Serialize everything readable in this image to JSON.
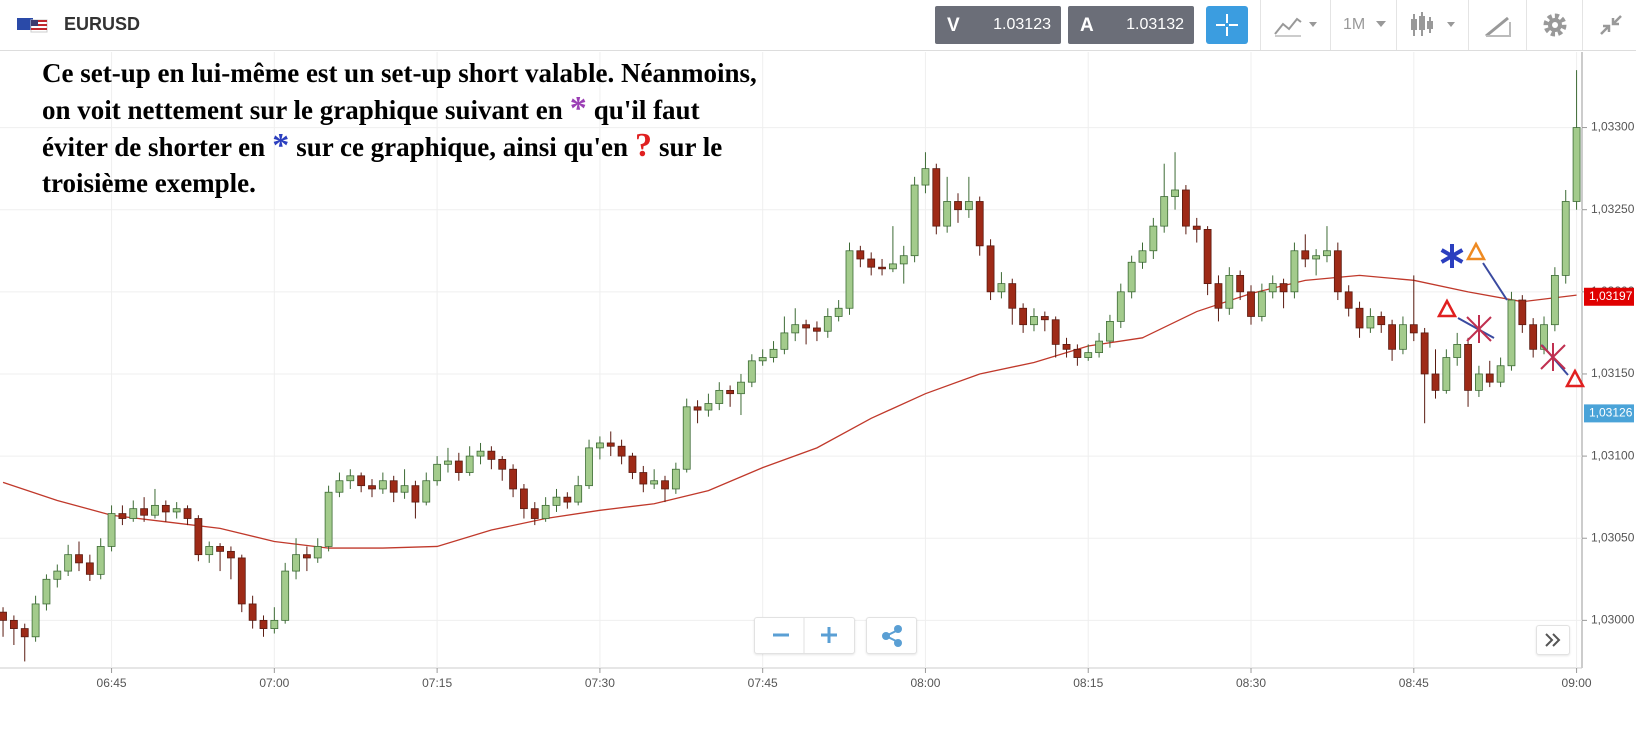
{
  "toolbar": {
    "symbol": "EURUSD",
    "bid_label": "V",
    "bid": "1.03123",
    "ask_label": "A",
    "ask": "1.03132",
    "timeframe": "1M"
  },
  "annotation": {
    "lines": [
      [
        "Ce set-up en lui-même est un set-up short valable. Néanmoins,"
      ],
      [
        "on voit nettement sur le graphique suivant en",
        {
          "text": "*",
          "color": "#9b3fb5"
        },
        "qu'il faut"
      ],
      [
        "éviter de shorter en",
        {
          "text": "*",
          "color": "#2b3fbf"
        },
        "sur ce graphique, ainsi qu'en",
        {
          "text": "?",
          "color": "#e02020"
        },
        "sur le"
      ],
      [
        "troisième exemple."
      ]
    ]
  },
  "chart_data": {
    "type": "candlestick",
    "up_color": "#a3cb8c",
    "up_border": "#3d6b35",
    "down_color": "#9e2a17",
    "down_border": "#5a1a10",
    "grid": true,
    "xlim": [
      -0.28,
      145.5
    ],
    "xticks": [
      {
        "value": 10,
        "label": "06:45"
      },
      {
        "value": 25,
        "label": "07:00"
      },
      {
        "value": 40,
        "label": "07:15"
      },
      {
        "value": 55,
        "label": "07:30"
      },
      {
        "value": 70,
        "label": "07:45"
      },
      {
        "value": 85,
        "label": "08:00"
      },
      {
        "value": 100,
        "label": "08:15"
      },
      {
        "value": 115,
        "label": "08:30"
      },
      {
        "value": 130,
        "label": "08:45"
      },
      {
        "value": 145,
        "label": "09:00"
      }
    ],
    "ylim": [
      1.02971,
      1.03346
    ],
    "yticks": [
      {
        "value": 1.03,
        "label": "1,03000"
      },
      {
        "value": 1.0305,
        "label": "1,03050"
      },
      {
        "value": 1.031,
        "label": "1,03100"
      },
      {
        "value": 1.0315,
        "label": "1,03150"
      },
      {
        "value": 1.032,
        "label": "1,03200"
      },
      {
        "value": 1.0325,
        "label": "1,03250"
      },
      {
        "value": 1.033,
        "label": "1,03300"
      }
    ],
    "price_tags": [
      {
        "value": 1.03197,
        "label": "1,03197",
        "color": "#e00000"
      },
      {
        "value": 1.03126,
        "label": "1,03126",
        "color": "#4aa3d8"
      }
    ],
    "ma": {
      "color": "#c0392b",
      "x": [
        0,
        5,
        10,
        15,
        20,
        25,
        30,
        35,
        40,
        45,
        50,
        55,
        60,
        65,
        70,
        75,
        80,
        85,
        90,
        95,
        100,
        105,
        110,
        115,
        120,
        125,
        130,
        135,
        140,
        145
      ],
      "values": [
        1.03084,
        1.03073,
        1.03064,
        1.0306,
        1.03056,
        1.03048,
        1.03044,
        1.03044,
        1.03045,
        1.03055,
        1.03062,
        1.03067,
        1.03071,
        1.03079,
        1.03093,
        1.03105,
        1.03123,
        1.03138,
        1.0315,
        1.03157,
        1.03167,
        1.03172,
        1.03188,
        1.03199,
        1.03207,
        1.0321,
        1.03207,
        1.032,
        1.03194,
        1.03198
      ]
    },
    "ohlc": [
      [
        1.03005,
        1.03008,
        1.0299,
        1.03
      ],
      [
        1.03,
        1.03003,
        1.02985,
        1.02995
      ],
      [
        1.02995,
        1.02998,
        1.02975,
        1.0299
      ],
      [
        1.0299,
        1.03015,
        1.02987,
        1.0301
      ],
      [
        1.0301,
        1.03028,
        1.03006,
        1.03025
      ],
      [
        1.03025,
        1.03034,
        1.0302,
        1.0303
      ],
      [
        1.0303,
        1.03046,
        1.03027,
        1.0304
      ],
      [
        1.0304,
        1.03048,
        1.0303,
        1.03035
      ],
      [
        1.03035,
        1.0304,
        1.03024,
        1.03028
      ],
      [
        1.03028,
        1.0305,
        1.03025,
        1.03045
      ],
      [
        1.03045,
        1.0307,
        1.03042,
        1.03065
      ],
      [
        1.03065,
        1.0307,
        1.03058,
        1.03062
      ],
      [
        1.03062,
        1.03073,
        1.0306,
        1.03068
      ],
      [
        1.03068,
        1.03075,
        1.0306,
        1.03064
      ],
      [
        1.03064,
        1.0308,
        1.03062,
        1.0307
      ],
      [
        1.0307,
        1.03073,
        1.0306,
        1.03066
      ],
      [
        1.03066,
        1.03072,
        1.03062,
        1.03068
      ],
      [
        1.03068,
        1.0307,
        1.03058,
        1.03062
      ],
      [
        1.03062,
        1.03064,
        1.03036,
        1.0304
      ],
      [
        1.0304,
        1.03048,
        1.03035,
        1.03045
      ],
      [
        1.03045,
        1.03047,
        1.0303,
        1.03042
      ],
      [
        1.03042,
        1.03045,
        1.03025,
        1.03038
      ],
      [
        1.03038,
        1.0304,
        1.03005,
        1.0301
      ],
      [
        1.0301,
        1.03015,
        1.02995,
        1.03
      ],
      [
        1.03,
        1.03003,
        1.0299,
        1.02995
      ],
      [
        1.02995,
        1.03008,
        1.02992,
        1.03
      ],
      [
        1.03,
        1.03035,
        1.02998,
        1.0303
      ],
      [
        1.0303,
        1.0305,
        1.03025,
        1.0304
      ],
      [
        1.0304,
        1.03045,
        1.0303,
        1.03038
      ],
      [
        1.03038,
        1.0305,
        1.03035,
        1.03045
      ],
      [
        1.03045,
        1.03082,
        1.03042,
        1.03078
      ],
      [
        1.03078,
        1.0309,
        1.03075,
        1.03085
      ],
      [
        1.03085,
        1.03092,
        1.0308,
        1.03088
      ],
      [
        1.03088,
        1.0309,
        1.03078,
        1.03082
      ],
      [
        1.03082,
        1.03086,
        1.03075,
        1.0308
      ],
      [
        1.0308,
        1.0309,
        1.03077,
        1.03085
      ],
      [
        1.03085,
        1.03088,
        1.03072,
        1.03078
      ],
      [
        1.03078,
        1.03092,
        1.03074,
        1.03082
      ],
      [
        1.03082,
        1.03085,
        1.03062,
        1.03072
      ],
      [
        1.03072,
        1.0309,
        1.0307,
        1.03085
      ],
      [
        1.03085,
        1.031,
        1.03082,
        1.03095
      ],
      [
        1.03095,
        1.03105,
        1.0309,
        1.03097
      ],
      [
        1.03097,
        1.03102,
        1.03085,
        1.0309
      ],
      [
        1.0309,
        1.03106,
        1.03088,
        1.031
      ],
      [
        1.031,
        1.03108,
        1.03095,
        1.03103
      ],
      [
        1.03103,
        1.03106,
        1.03092,
        1.03098
      ],
      [
        1.03098,
        1.031,
        1.03085,
        1.03092
      ],
      [
        1.03092,
        1.03095,
        1.03075,
        1.0308
      ],
      [
        1.0308,
        1.03083,
        1.03062,
        1.03068
      ],
      [
        1.03068,
        1.03072,
        1.03058,
        1.03062
      ],
      [
        1.03062,
        1.03075,
        1.0306,
        1.0307
      ],
      [
        1.0307,
        1.0308,
        1.03066,
        1.03075
      ],
      [
        1.03075,
        1.03078,
        1.03068,
        1.03072
      ],
      [
        1.03072,
        1.03088,
        1.0307,
        1.03082
      ],
      [
        1.03082,
        1.0311,
        1.0308,
        1.03105
      ],
      [
        1.03105,
        1.03112,
        1.03098,
        1.03108
      ],
      [
        1.03108,
        1.03115,
        1.031,
        1.03106
      ],
      [
        1.03106,
        1.0311,
        1.03095,
        1.031
      ],
      [
        1.031,
        1.03102,
        1.03086,
        1.0309
      ],
      [
        1.0309,
        1.03094,
        1.03078,
        1.03083
      ],
      [
        1.03083,
        1.03092,
        1.0308,
        1.03085
      ],
      [
        1.03085,
        1.03088,
        1.03072,
        1.0308
      ],
      [
        1.0308,
        1.03096,
        1.03077,
        1.03092
      ],
      [
        1.03092,
        1.03135,
        1.0309,
        1.0313
      ],
      [
        1.0313,
        1.03134,
        1.0312,
        1.03128
      ],
      [
        1.03128,
        1.03138,
        1.03124,
        1.03132
      ],
      [
        1.03132,
        1.03145,
        1.03128,
        1.0314
      ],
      [
        1.0314,
        1.03143,
        1.0313,
        1.03138
      ],
      [
        1.03138,
        1.0315,
        1.03125,
        1.03145
      ],
      [
        1.03145,
        1.03162,
        1.03142,
        1.03158
      ],
      [
        1.03158,
        1.03165,
        1.03155,
        1.0316
      ],
      [
        1.0316,
        1.0317,
        1.03157,
        1.03165
      ],
      [
        1.03165,
        1.03185,
        1.03162,
        1.03175
      ],
      [
        1.03175,
        1.0319,
        1.0317,
        1.0318
      ],
      [
        1.0318,
        1.03183,
        1.03168,
        1.03178
      ],
      [
        1.03178,
        1.03182,
        1.0317,
        1.03176
      ],
      [
        1.03176,
        1.0319,
        1.03172,
        1.03185
      ],
      [
        1.03185,
        1.03195,
        1.03182,
        1.0319
      ],
      [
        1.0319,
        1.0323,
        1.03186,
        1.03225
      ],
      [
        1.03225,
        1.03228,
        1.03215,
        1.0322
      ],
      [
        1.0322,
        1.03224,
        1.0321,
        1.03215
      ],
      [
        1.03215,
        1.0322,
        1.0321,
        1.03214
      ],
      [
        1.03214,
        1.0324,
        1.03212,
        1.03217
      ],
      [
        1.03217,
        1.03228,
        1.03205,
        1.03222
      ],
      [
        1.03222,
        1.0327,
        1.03218,
        1.03265
      ],
      [
        1.03265,
        1.03285,
        1.0326,
        1.03275
      ],
      [
        1.03275,
        1.03278,
        1.03235,
        1.0324
      ],
      [
        1.0324,
        1.0327,
        1.03236,
        1.03255
      ],
      [
        1.03255,
        1.0326,
        1.03242,
        1.0325
      ],
      [
        1.0325,
        1.0327,
        1.03245,
        1.03255
      ],
      [
        1.03255,
        1.03258,
        1.03222,
        1.03228
      ],
      [
        1.03228,
        1.03232,
        1.03195,
        1.032
      ],
      [
        1.032,
        1.03212,
        1.03196,
        1.03205
      ],
      [
        1.03205,
        1.03208,
        1.0318,
        1.0319
      ],
      [
        1.0319,
        1.03193,
        1.03175,
        1.0318
      ],
      [
        1.0318,
        1.0319,
        1.03176,
        1.03185
      ],
      [
        1.03185,
        1.03188,
        1.03176,
        1.03183
      ],
      [
        1.03183,
        1.03185,
        1.0316,
        1.03168
      ],
      [
        1.03168,
        1.03172,
        1.0316,
        1.03165
      ],
      [
        1.03165,
        1.03168,
        1.03155,
        1.0316
      ],
      [
        1.0316,
        1.03168,
        1.03158,
        1.03163
      ],
      [
        1.03163,
        1.03175,
        1.0316,
        1.0317
      ],
      [
        1.0317,
        1.03186,
        1.03166,
        1.03182
      ],
      [
        1.03182,
        1.03205,
        1.03178,
        1.032
      ],
      [
        1.032,
        1.03222,
        1.03196,
        1.03218
      ],
      [
        1.03218,
        1.0323,
        1.03214,
        1.03225
      ],
      [
        1.03225,
        1.03245,
        1.0322,
        1.0324
      ],
      [
        1.0324,
        1.03278,
        1.03236,
        1.03258
      ],
      [
        1.03258,
        1.03285,
        1.0325,
        1.03262
      ],
      [
        1.03262,
        1.03265,
        1.03235,
        1.0324
      ],
      [
        1.0324,
        1.03245,
        1.0323,
        1.03238
      ],
      [
        1.03238,
        1.0324,
        1.03198,
        1.03205
      ],
      [
        1.03205,
        1.0321,
        1.03182,
        1.0319
      ],
      [
        1.0319,
        1.03215,
        1.03186,
        1.0321
      ],
      [
        1.0321,
        1.03213,
        1.03195,
        1.032
      ],
      [
        1.032,
        1.03204,
        1.0318,
        1.03185
      ],
      [
        1.03185,
        1.03205,
        1.03182,
        1.032
      ],
      [
        1.032,
        1.0321,
        1.03196,
        1.03205
      ],
      [
        1.03205,
        1.03208,
        1.0319,
        1.032
      ],
      [
        1.032,
        1.0323,
        1.03196,
        1.03225
      ],
      [
        1.03225,
        1.03235,
        1.03215,
        1.0322
      ],
      [
        1.0322,
        1.03226,
        1.0321,
        1.03222
      ],
      [
        1.03222,
        1.0324,
        1.03218,
        1.03225
      ],
      [
        1.03225,
        1.0323,
        1.03195,
        1.032
      ],
      [
        1.032,
        1.03204,
        1.03185,
        1.0319
      ],
      [
        1.0319,
        1.03194,
        1.03172,
        1.03178
      ],
      [
        1.03178,
        1.0319,
        1.03175,
        1.03185
      ],
      [
        1.03185,
        1.03188,
        1.03175,
        1.0318
      ],
      [
        1.0318,
        1.03183,
        1.03158,
        1.03165
      ],
      [
        1.03165,
        1.03185,
        1.03162,
        1.0318
      ],
      [
        1.0318,
        1.0321,
        1.0317,
        1.03175
      ],
      [
        1.03175,
        1.03178,
        1.0312,
        1.0315
      ],
      [
        1.0315,
        1.03165,
        1.03135,
        1.0314
      ],
      [
        1.0314,
        1.03165,
        1.03138,
        1.0316
      ],
      [
        1.0316,
        1.03175,
        1.03155,
        1.03168
      ],
      [
        1.03168,
        1.03172,
        1.0313,
        1.0314
      ],
      [
        1.0314,
        1.03155,
        1.03136,
        1.0315
      ],
      [
        1.0315,
        1.03158,
        1.03142,
        1.03145
      ],
      [
        1.03145,
        1.0316,
        1.03142,
        1.03155
      ],
      [
        1.03155,
        1.032,
        1.03152,
        1.03195
      ],
      [
        1.03195,
        1.03198,
        1.03175,
        1.0318
      ],
      [
        1.0318,
        1.03184,
        1.0316,
        1.03165
      ],
      [
        1.03165,
        1.03185,
        1.03162,
        1.0318
      ],
      [
        1.0318,
        1.03215,
        1.03176,
        1.0321
      ],
      [
        1.0321,
        1.03262,
        1.03205,
        1.03255
      ],
      [
        1.03255,
        1.03335,
        1.0325,
        1.033
      ]
    ]
  }
}
